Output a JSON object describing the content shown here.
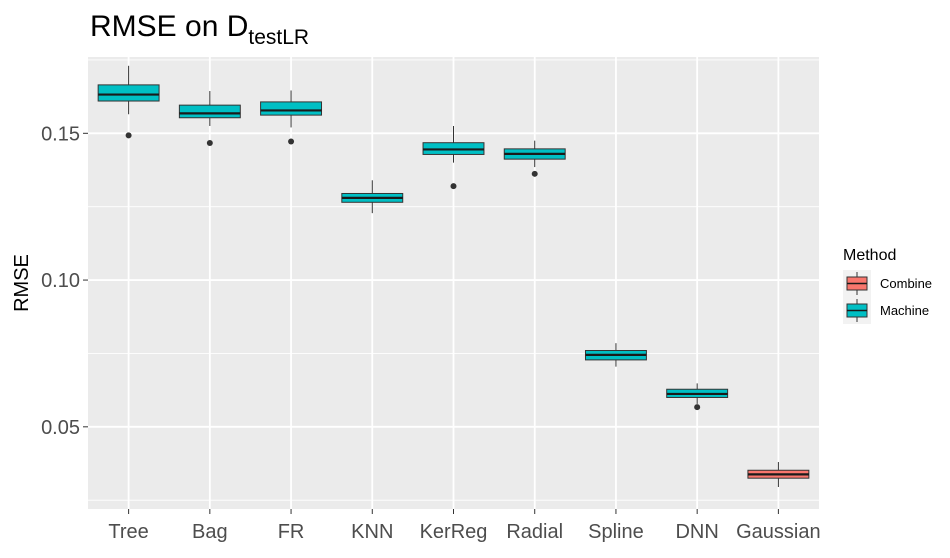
{
  "chart_data": {
    "type": "boxplot",
    "title": {
      "main": "RMSE on D",
      "subscript": "testLR"
    },
    "xlabel": "",
    "ylabel": "RMSE",
    "ylim": [
      0.022,
      0.176
    ],
    "yticks": [
      0.05,
      0.1,
      0.15
    ],
    "ytick_labels": [
      "0.05",
      "0.10",
      "0.15"
    ],
    "grid": true,
    "legend": {
      "title": "Method",
      "position": "right",
      "entries": [
        {
          "label": "Combine",
          "color": "#F8766D"
        },
        {
          "label": "Machine",
          "color": "#00BFC4"
        }
      ]
    },
    "categories": [
      "Tree",
      "Bag",
      "FR",
      "KNN",
      "KerReg",
      "Radial",
      "Spline",
      "DNN",
      "Gaussian"
    ],
    "boxes": [
      {
        "category": "Tree",
        "method": "Machine",
        "whisker_low": 0.1565,
        "q1": 0.161,
        "median": 0.1632,
        "q3": 0.1665,
        "whisker_high": 0.173,
        "outliers": [
          0.1493
        ]
      },
      {
        "category": "Bag",
        "method": "Machine",
        "whisker_low": 0.1525,
        "q1": 0.1553,
        "median": 0.1568,
        "q3": 0.1596,
        "whisker_high": 0.1644,
        "outliers": [
          0.1467
        ]
      },
      {
        "category": "FR",
        "method": "Machine",
        "whisker_low": 0.152,
        "q1": 0.1562,
        "median": 0.1578,
        "q3": 0.1607,
        "whisker_high": 0.1646,
        "outliers": [
          0.1472
        ]
      },
      {
        "category": "KNN",
        "method": "Machine",
        "whisker_low": 0.1228,
        "q1": 0.1265,
        "median": 0.128,
        "q3": 0.1295,
        "whisker_high": 0.134,
        "outliers": []
      },
      {
        "category": "KerReg",
        "method": "Machine",
        "whisker_low": 0.14,
        "q1": 0.1428,
        "median": 0.1445,
        "q3": 0.1468,
        "whisker_high": 0.1525,
        "outliers": [
          0.132
        ]
      },
      {
        "category": "Radial",
        "method": "Machine",
        "whisker_low": 0.1385,
        "q1": 0.1412,
        "median": 0.143,
        "q3": 0.1447,
        "whisker_high": 0.1475,
        "outliers": [
          0.1362
        ]
      },
      {
        "category": "Spline",
        "method": "Machine",
        "whisker_low": 0.0705,
        "q1": 0.0728,
        "median": 0.0745,
        "q3": 0.076,
        "whisker_high": 0.0785,
        "outliers": []
      },
      {
        "category": "DNN",
        "method": "Machine",
        "whisker_low": 0.0578,
        "q1": 0.06,
        "median": 0.0612,
        "q3": 0.0628,
        "whisker_high": 0.0648,
        "outliers": [
          0.0567
        ]
      },
      {
        "category": "Gaussian",
        "method": "Combine",
        "whisker_low": 0.0295,
        "q1": 0.0325,
        "median": 0.0338,
        "q3": 0.0352,
        "whisker_high": 0.038,
        "outliers": []
      }
    ]
  }
}
